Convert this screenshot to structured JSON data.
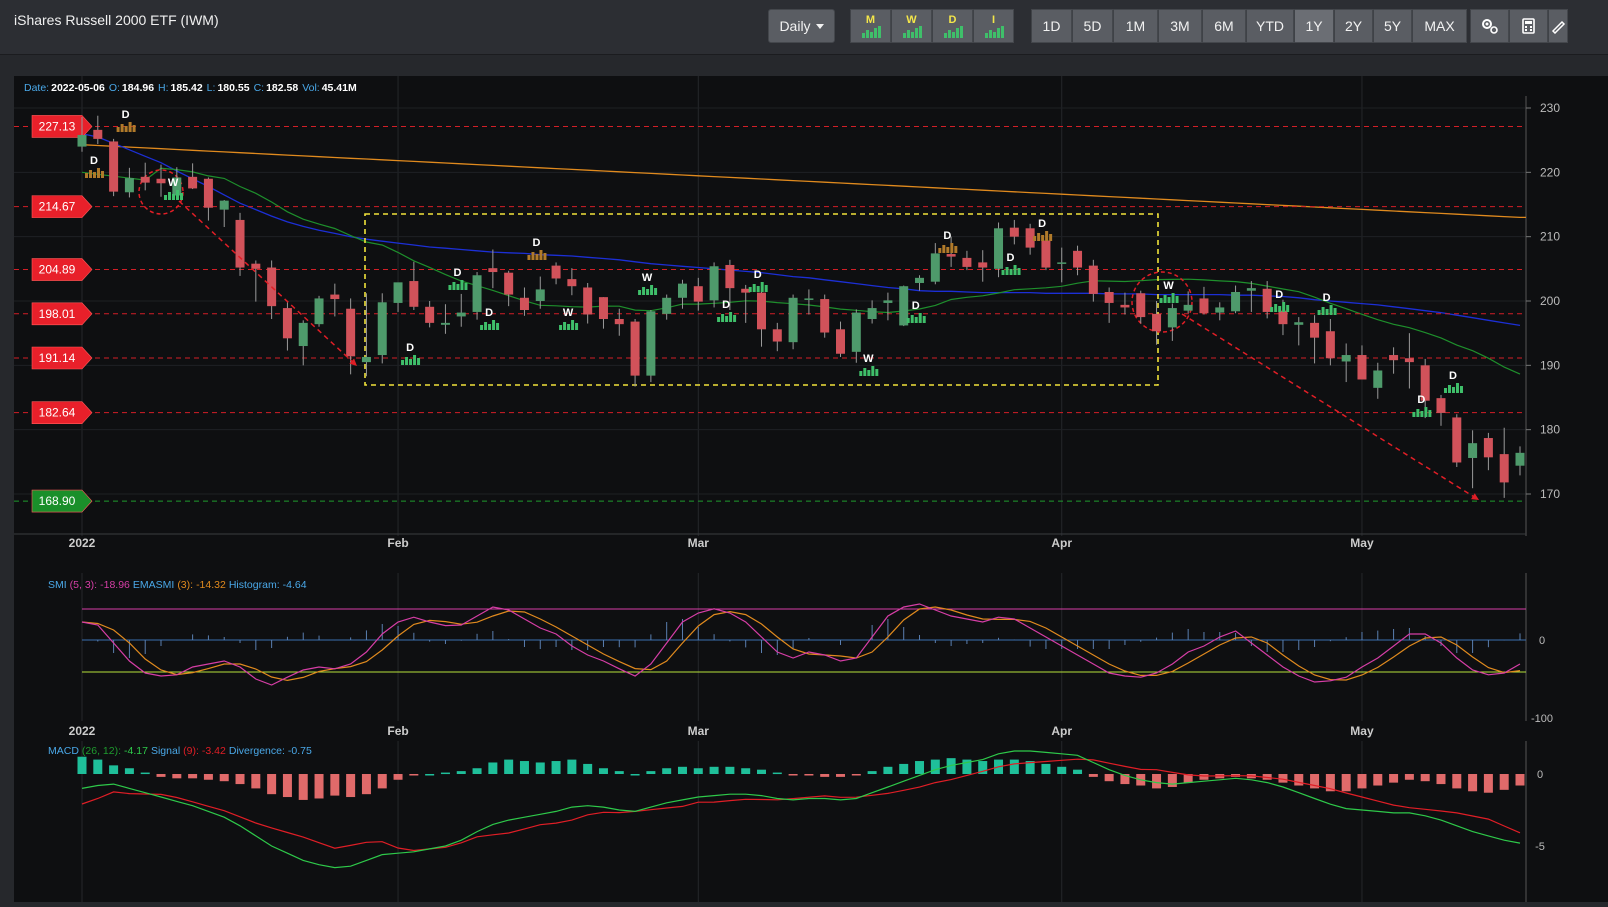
{
  "header": {
    "title": "iShares Russell 2000 ETF (IWM)",
    "interval": "Daily",
    "timeframe_icons": [
      "M",
      "W",
      "D",
      "I"
    ],
    "ranges": [
      "1D",
      "5D",
      "1M",
      "3M",
      "6M",
      "YTD",
      "1Y",
      "2Y",
      "5Y",
      "MAX"
    ],
    "selected_range": "1Y",
    "tool_icons": [
      "settings-cogs-icon",
      "calculator-icon",
      "drawing-tool-icon"
    ]
  },
  "ohlc": {
    "date_label": "Date:",
    "date": "2022-05-06",
    "open_label": "O:",
    "open": "184.96",
    "high_label": "H:",
    "high": "185.42",
    "low_label": "L:",
    "low": "180.55",
    "close_label": "C:",
    "close": "182.58",
    "vol_label": "Vol:",
    "vol": "45.41M"
  },
  "levels": [
    {
      "label": "227.13",
      "value": 227.13,
      "color": "#e8202a"
    },
    {
      "label": "214.67",
      "value": 214.67,
      "color": "#e8202a"
    },
    {
      "label": "204.89",
      "value": 204.89,
      "color": "#e8202a"
    },
    {
      "label": "198.01",
      "value": 198.01,
      "color": "#e8202a"
    },
    {
      "label": "191.14",
      "value": 191.14,
      "color": "#e8202a"
    },
    {
      "label": "182.64",
      "value": 182.64,
      "color": "#e8202a"
    },
    {
      "label": "168.90",
      "value": 168.9,
      "color": "#1a8f2a"
    }
  ],
  "x_labels": [
    "2022",
    "Feb",
    "Mar",
    "Apr",
    "May"
  ],
  "price_axis": [
    "230",
    "220",
    "210",
    "200",
    "190",
    "180",
    "170"
  ],
  "smi": {
    "title": "SMI",
    "params": "(5, 3):",
    "value": "-18.96",
    "ema_label": "EMASMI",
    "ema_param": "(3):",
    "ema_value": "-14.32",
    "hist_label": "Histogram:",
    "hist_value": "-4.64",
    "axis": [
      "0",
      "-100"
    ]
  },
  "macd": {
    "title": "MACD",
    "params": "(26, 12):",
    "value": "-4.17",
    "signal_label": "Signal",
    "signal_param": "(9):",
    "signal_value": "-3.42",
    "div_label": "Divergence:",
    "div_value": "-0.75",
    "axis": [
      "0",
      "-5"
    ]
  },
  "chart_data": {
    "type": "candlestick",
    "symbol": "IWM",
    "y_range": [
      168,
      232
    ],
    "dates": [
      "2022-01-03",
      "2022-01-04",
      "2022-01-05",
      "2022-01-06",
      "2022-01-07",
      "2022-01-10",
      "2022-01-11",
      "2022-01-12",
      "2022-01-13",
      "2022-01-14",
      "2022-01-18",
      "2022-01-19",
      "2022-01-20",
      "2022-01-21",
      "2022-01-24",
      "2022-01-25",
      "2022-01-26",
      "2022-01-27",
      "2022-01-28",
      "2022-01-31",
      "2022-02-01",
      "2022-02-02",
      "2022-02-03",
      "2022-02-04",
      "2022-02-07",
      "2022-02-08",
      "2022-02-09",
      "2022-02-10",
      "2022-02-11",
      "2022-02-14",
      "2022-02-15",
      "2022-02-16",
      "2022-02-17",
      "2022-02-18",
      "2022-02-22",
      "2022-02-23",
      "2022-02-24",
      "2022-02-25",
      "2022-02-28",
      "2022-03-01",
      "2022-03-02",
      "2022-03-03",
      "2022-03-04",
      "2022-03-07",
      "2022-03-08",
      "2022-03-09",
      "2022-03-10",
      "2022-03-11",
      "2022-03-14",
      "2022-03-15",
      "2022-03-16",
      "2022-03-17",
      "2022-03-18",
      "2022-03-21",
      "2022-03-22",
      "2022-03-23",
      "2022-03-24",
      "2022-03-25",
      "2022-03-28",
      "2022-03-29",
      "2022-03-30",
      "2022-03-31",
      "2022-04-01",
      "2022-04-04",
      "2022-04-05",
      "2022-04-06",
      "2022-04-07",
      "2022-04-08",
      "2022-04-11",
      "2022-04-12",
      "2022-04-13",
      "2022-04-14",
      "2022-04-18",
      "2022-04-19",
      "2022-04-20",
      "2022-04-21",
      "2022-04-22",
      "2022-04-25",
      "2022-04-26",
      "2022-04-27",
      "2022-04-28",
      "2022-04-29",
      "2022-05-02",
      "2022-05-03",
      "2022-05-04",
      "2022-05-05",
      "2022-05-06",
      "2022-05-09",
      "2022-05-10",
      "2022-05-11",
      "2022-05-12",
      "2022-05-13"
    ],
    "open": [
      224.0,
      226.6,
      224.8,
      216.9,
      219.3,
      219.0,
      216.4,
      219.3,
      219.0,
      214.2,
      212.6,
      205.8,
      205.2,
      198.9,
      193.0,
      196.4,
      201.0,
      198.8,
      190.5,
      191.6,
      199.7,
      203.1,
      199.1,
      196.3,
      197.6,
      198.3,
      205.1,
      204.4,
      200.5,
      200.0,
      205.5,
      203.4,
      202.1,
      200.6,
      197.2,
      196.8,
      188.4,
      198.0,
      200.5,
      202.3,
      200.1,
      205.6,
      201.9,
      201.3,
      195.6,
      193.6,
      200.4,
      200.3,
      195.6,
      192.1,
      197.2,
      199.7,
      196.2,
      202.8,
      203.0,
      207.3,
      206.7,
      206.0,
      205.0,
      211.4,
      211.3,
      209.4,
      205.8,
      207.8,
      205.5,
      201.4,
      199.4,
      201.2,
      198.0,
      195.9,
      198.5,
      200.4,
      198.2,
      198.4,
      201.6,
      201.9,
      198.5,
      196.3,
      196.6,
      195.3,
      190.6,
      191.6,
      186.5,
      191.6,
      191.1,
      190.0,
      184.9,
      181.9,
      175.6,
      178.7,
      176.2,
      174.4
    ],
    "high": [
      228.6,
      228.8,
      225.2,
      220.7,
      221.5,
      221.2,
      220.8,
      221.4,
      219.2,
      215.7,
      213.7,
      206.3,
      206.3,
      199.8,
      197.0,
      200.8,
      202.7,
      200.4,
      201.2,
      201.2,
      202.7,
      206.1,
      200.0,
      199.5,
      201.1,
      204.5,
      208.0,
      204.7,
      202.1,
      203.8,
      206.0,
      205.1,
      202.8,
      200.6,
      198.8,
      197.2,
      198.6,
      201.0,
      203.3,
      203.6,
      206.0,
      206.4,
      202.5,
      201.7,
      196.6,
      201.0,
      201.8,
      201.0,
      196.8,
      198.7,
      200.1,
      201.3,
      202.4,
      204.0,
      209.0,
      210.0,
      207.8,
      207.9,
      212.2,
      212.6,
      212.0,
      210.7,
      208.3,
      208.6,
      206.4,
      202.1,
      201.3,
      201.6,
      200.0,
      199.6,
      201.5,
      202.2,
      199.8,
      202.4,
      203.1,
      203.1,
      200.2,
      197.5,
      197.8,
      197.2,
      193.4,
      193.1,
      190.4,
      192.8,
      195.0,
      191.0,
      185.4,
      182.4,
      179.9,
      179.5,
      180.3,
      177.4
    ],
    "low": [
      223.2,
      224.4,
      216.3,
      216.1,
      217.2,
      216.2,
      216.0,
      217.4,
      212.5,
      211.5,
      203.9,
      199.9,
      197.2,
      192.3,
      190.0,
      196.0,
      197.6,
      188.6,
      188.3,
      190.3,
      198.3,
      198.6,
      195.9,
      194.9,
      196.0,
      197.1,
      202.0,
      199.2,
      197.7,
      198.8,
      202.6,
      200.9,
      196.5,
      195.7,
      194.6,
      186.7,
      187.4,
      197.1,
      198.8,
      198.5,
      199.0,
      198.6,
      196.6,
      192.9,
      192.2,
      192.5,
      197.9,
      194.3,
      191.3,
      190.4,
      196.5,
      197.0,
      196.1,
      201.6,
      202.6,
      205.3,
      204.8,
      203.0,
      203.7,
      208.8,
      207.2,
      204.8,
      202.9,
      204.0,
      199.9,
      196.6,
      197.9,
      196.5,
      193.2,
      193.8,
      198.1,
      197.9,
      197.0,
      198.1,
      198.3,
      197.3,
      194.7,
      193.1,
      190.3,
      190.0,
      187.4,
      188.0,
      184.8,
      188.7,
      186.4,
      181.8,
      180.6,
      174.2,
      170.9,
      173.7,
      169.4,
      172.9
    ],
    "close": [
      225.8,
      225.2,
      217.0,
      219.1,
      218.4,
      218.3,
      219.2,
      217.5,
      214.5,
      215.6,
      205.2,
      205.0,
      199.2,
      194.2,
      196.6,
      200.4,
      200.3,
      191.4,
      191.3,
      199.8,
      202.9,
      199.1,
      196.6,
      196.6,
      198.2,
      204.0,
      204.5,
      201.0,
      198.6,
      201.8,
      203.5,
      202.3,
      197.9,
      197.2,
      196.4,
      188.4,
      198.4,
      200.5,
      202.7,
      199.9,
      205.4,
      202.0,
      201.3,
      195.6,
      193.7,
      200.5,
      200.4,
      195.1,
      191.8,
      198.2,
      198.9,
      200.1,
      202.3,
      203.6,
      207.4,
      206.9,
      205.3,
      205.2,
      211.3,
      210.0,
      208.3,
      205.2,
      206.0,
      205.2,
      201.1,
      199.7,
      199.0,
      197.5,
      195.3,
      198.9,
      199.4,
      198.1,
      199.0,
      201.4,
      202.0,
      198.3,
      196.4,
      196.7,
      194.3,
      191.1,
      191.6,
      187.8,
      189.2,
      190.8,
      190.5,
      184.5,
      182.6,
      174.9,
      177.9,
      175.7,
      171.8,
      176.4
    ]
  }
}
